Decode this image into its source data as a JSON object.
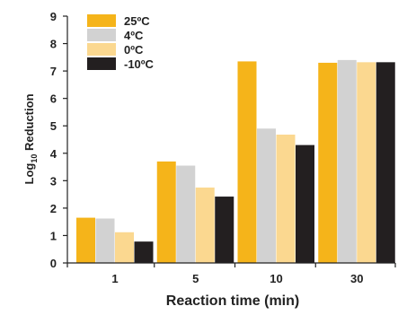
{
  "chart_data": {
    "type": "bar",
    "categories": [
      "1",
      "5",
      "10",
      "30"
    ],
    "series": [
      {
        "name": "25ºC",
        "color": "#F5B41A",
        "values": [
          1.65,
          3.7,
          7.35,
          7.3
        ]
      },
      {
        "name": "4ºC",
        "color": "#D2D2D2",
        "values": [
          1.62,
          3.55,
          4.9,
          7.4
        ]
      },
      {
        "name": "0ºC",
        "color": "#FBD890",
        "values": [
          1.12,
          2.75,
          4.68,
          7.32
        ]
      },
      {
        "name": "-10ºC",
        "color": "#231F20",
        "values": [
          0.78,
          2.42,
          4.3,
          7.32
        ]
      }
    ],
    "title": "",
    "xlabel": "Reaction time (min)",
    "ylabel_main": "Log",
    "ylabel_sub": "10",
    "ylabel_rest": " Reduction",
    "ylim": [
      0,
      9
    ],
    "yticks": [
      "0",
      "1",
      "2",
      "3",
      "4",
      "5",
      "6",
      "7",
      "8",
      "9"
    ],
    "legend_position": "top-left",
    "grid": false
  }
}
